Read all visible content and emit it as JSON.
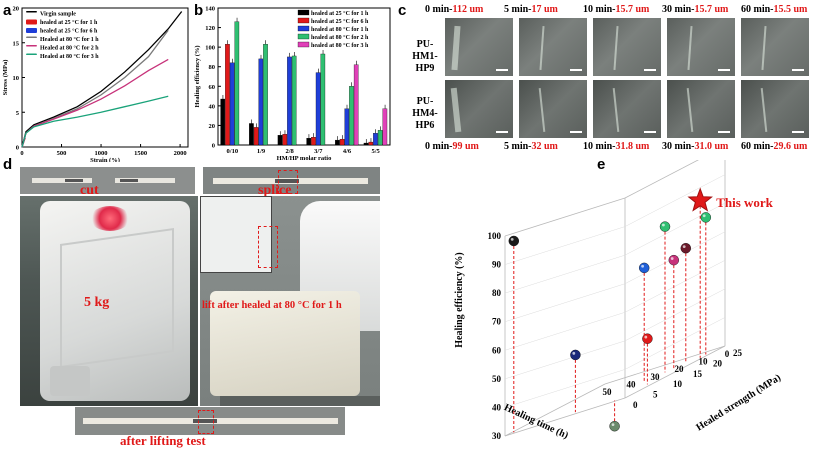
{
  "panels": {
    "a": "a",
    "b": "b",
    "c": "c",
    "d": "d",
    "e": "e"
  },
  "chart_data": [
    {
      "id": "a",
      "type": "line",
      "xlabel": "Strain (%)",
      "ylabel": "Stress (MPa)",
      "xlim": [
        0,
        2100
      ],
      "ylim": [
        0,
        20
      ],
      "xticks": [
        "0",
        "500",
        "1000",
        "1500",
        "2000"
      ],
      "yticks": [
        "0",
        "5",
        "10",
        "15",
        "20"
      ],
      "legend_position": "top-left",
      "series": [
        {
          "name": "Virgin sample",
          "color": "#000000",
          "x": [
            0,
            50,
            150,
            400,
            700,
            1000,
            1300,
            1600,
            1850,
            2020
          ],
          "y": [
            0,
            2.2,
            3.2,
            4.3,
            5.8,
            8.0,
            10.8,
            14.0,
            17.0,
            19.5
          ]
        },
        {
          "name": "healed at 25 °C for 1 h",
          "color": "#e01919",
          "x": [
            0,
            40
          ],
          "y": [
            0,
            1.3
          ]
        },
        {
          "name": "healed at 25 °C for 6 h",
          "color": "#1f3ed8",
          "x": [
            0,
            40
          ],
          "y": [
            0,
            1.5
          ]
        },
        {
          "name": "Healed at 80 °C for 1 h",
          "color": "#7a7a7a",
          "x": [
            0,
            50,
            150,
            400,
            700,
            1000,
            1300,
            1600,
            1850
          ],
          "y": [
            0,
            2.0,
            3.0,
            4.1,
            5.5,
            7.5,
            10.0,
            13.0,
            16.8
          ]
        },
        {
          "name": "Healed at 80 °C for 2 h",
          "color": "#c7327a",
          "x": [
            0,
            50,
            150,
            400,
            700,
            1000,
            1300,
            1600,
            1850
          ],
          "y": [
            0,
            2.0,
            3.0,
            4.0,
            5.3,
            6.9,
            8.8,
            11.0,
            12.6
          ]
        },
        {
          "name": "Healed at 80 °C for 3 h",
          "color": "#1aa37a",
          "x": [
            0,
            50,
            150,
            400,
            700,
            1000,
            1300,
            1600,
            1850
          ],
          "y": [
            0,
            2.0,
            2.9,
            3.7,
            4.3,
            5.0,
            5.8,
            6.6,
            7.3
          ]
        }
      ]
    },
    {
      "id": "b",
      "type": "bar",
      "xlabel": "HM/HP molar ratio",
      "ylabel": "Healing efficiency (%)",
      "ylim": [
        0,
        140
      ],
      "yticks": [
        "0",
        "20",
        "40",
        "60",
        "80",
        "100",
        "120",
        "140"
      ],
      "categories": [
        "0/10",
        "1/9",
        "2/8",
        "3/7",
        "4/6",
        "5/5"
      ],
      "legend_position": "top-right",
      "series": [
        {
          "name": "healed at 25 °C for 1 h",
          "color": "#000000",
          "values": [
            47,
            22,
            10,
            7,
            5,
            2
          ]
        },
        {
          "name": "healed at 25 °C for 6 h",
          "color": "#e01919",
          "values": [
            103,
            18,
            11,
            8,
            6,
            3
          ]
        },
        {
          "name": "healed at 80 °C for 1 h",
          "color": "#1f3ed8",
          "values": [
            84,
            88,
            90,
            74,
            37,
            12
          ]
        },
        {
          "name": "healed at 80 °C for 2 h",
          "color": "#2fbf71",
          "values": [
            126,
            103,
            91,
            93,
            60,
            15
          ]
        },
        {
          "name": "healed at 80 °C for 3 h",
          "color": "#e040b8",
          "values": [
            null,
            null,
            null,
            null,
            82,
            37
          ]
        }
      ]
    },
    {
      "id": "e",
      "type": "scatter",
      "title": "",
      "zlabel": "Healing efficiency (%)",
      "xlabel": "Healing time (h)",
      "ylabel": "Healed strength (MPa)",
      "zticks": [
        "30",
        "40",
        "50",
        "60",
        "70",
        "80",
        "90",
        "100"
      ],
      "xticks": [
        "0",
        "10",
        "20",
        "30",
        "40",
        "50"
      ],
      "yticks": [
        "0",
        "5",
        "10",
        "15",
        "20",
        "25"
      ],
      "annotation": "This work",
      "points": [
        {
          "time": 48,
          "strength": 1,
          "efficiency": 97,
          "color": "#1a1a1a"
        },
        {
          "time": 24,
          "strength": 2,
          "efficiency": 50,
          "color": "#1a2a7a"
        },
        {
          "time": 6,
          "strength": 1,
          "efficiency": 21,
          "color": "#6b8a6b"
        },
        {
          "time": 4,
          "strength": 8,
          "efficiency": 46,
          "color": "#e01919"
        },
        {
          "time": 12,
          "strength": 12,
          "efficiency": 70,
          "color": "#1f5fd8"
        },
        {
          "time": 10,
          "strength": 16,
          "efficiency": 81,
          "color": "#2fbf71"
        },
        {
          "time": 8,
          "strength": 17,
          "efficiency": 68,
          "color": "#c7327a"
        },
        {
          "time": 8,
          "strength": 20,
          "efficiency": 70,
          "color": "#6b1a2a"
        },
        {
          "time": 3,
          "strength": 22,
          "efficiency": 78,
          "color": "#2fbf71"
        },
        {
          "time": 2,
          "strength": 20,
          "efficiency": 85,
          "color": "#e01919",
          "marker": "star"
        }
      ]
    }
  ],
  "panel_c": {
    "row_labels": [
      "PU-\nHM1-HP9",
      "PU-\nHM4-HP6"
    ],
    "top_labels": [
      {
        "time": "0 min-",
        "width": "112 um"
      },
      {
        "time": "5 min-",
        "width": "17 um"
      },
      {
        "time": "10 min-",
        "width": "15.7 um"
      },
      {
        "time": "30 min-",
        "width": "15.7 um"
      },
      {
        "time": "60 min-",
        "width": "15.5 um"
      }
    ],
    "bottom_labels": [
      {
        "time": "0 min-",
        "width": "99 um"
      },
      {
        "time": "5 min-",
        "width": "32 um"
      },
      {
        "time": "10 min-",
        "width": "31.8 um"
      },
      {
        "time": "30 min-",
        "width": "31.0 um"
      },
      {
        "time": "60 min-",
        "width": "29.6 um"
      }
    ]
  },
  "panel_d": {
    "cut": "cut",
    "splice": "splice",
    "weight": "5 kg",
    "lift": "lift after healed at 80 °C for 1 h",
    "after": "after lifting test"
  }
}
